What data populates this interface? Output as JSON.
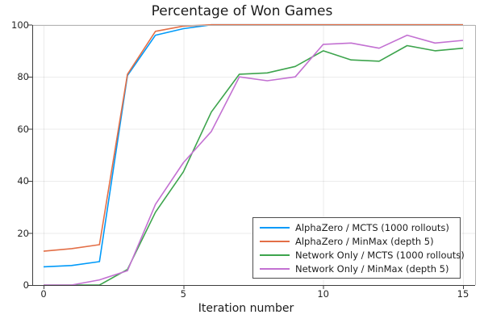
{
  "title": "Percentage of Won Games",
  "chart_data": {
    "type": "line",
    "title": "Percentage of Won Games",
    "xlabel": "Iteration number",
    "ylabel": "",
    "x": [
      0,
      1,
      2,
      3,
      4,
      5,
      6,
      7,
      8,
      9,
      10,
      11,
      12,
      13,
      14,
      15
    ],
    "xticks": [
      0,
      5,
      10,
      15
    ],
    "yticks": [
      0,
      20,
      40,
      60,
      80,
      100
    ],
    "xlim": [
      0,
      15
    ],
    "ylim": [
      0,
      100
    ],
    "grid": true,
    "legend_position": "bottom-right",
    "series": [
      {
        "name": "AlphaZero / MCTS (1000 rollouts)",
        "color": "#009af9",
        "values": [
          7,
          7.5,
          9,
          80.5,
          96,
          98.5,
          100,
          100,
          100,
          100,
          100,
          100,
          100,
          100,
          100,
          100
        ]
      },
      {
        "name": "AlphaZero / MinMax (depth 5)",
        "color": "#e36f47",
        "values": [
          13,
          14,
          15.5,
          81,
          97.5,
          99.5,
          100,
          100,
          100,
          100,
          100,
          100,
          100,
          100,
          100,
          100
        ]
      },
      {
        "name": "Network Only / MCTS (1000 rollouts)",
        "color": "#3da44d",
        "values": [
          0,
          0,
          0,
          6,
          28,
          43.5,
          66.5,
          81,
          81.5,
          84,
          90,
          86.5,
          86,
          92,
          90,
          91
        ]
      },
      {
        "name": "Network Only / MinMax (depth 5)",
        "color": "#c371d2",
        "values": [
          0,
          0,
          2,
          5.5,
          31,
          47,
          59,
          80,
          78.5,
          80,
          92.5,
          93,
          91,
          96,
          93,
          94
        ]
      }
    ]
  }
}
